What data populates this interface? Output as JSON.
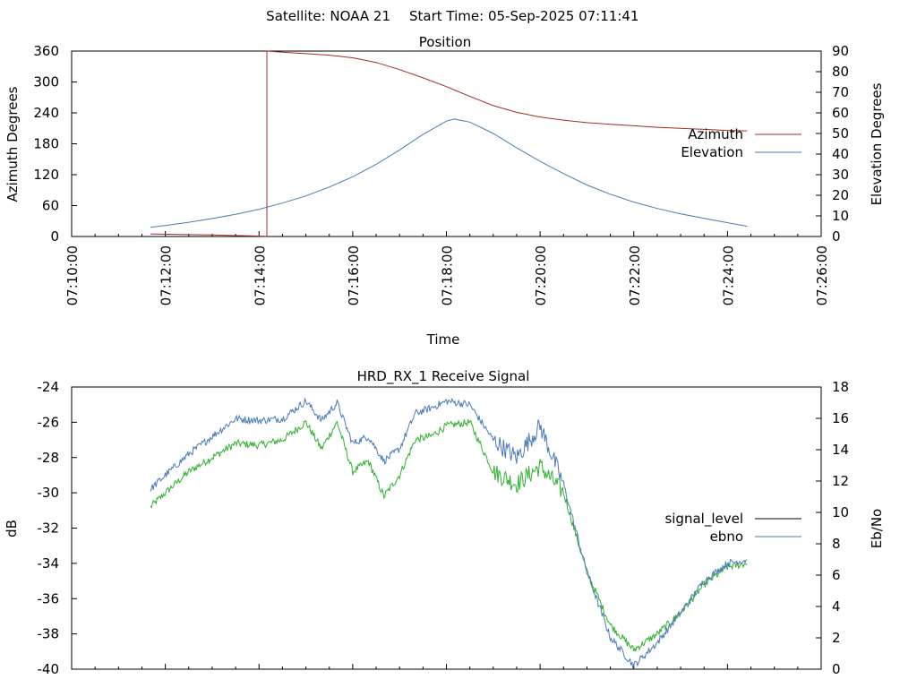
{
  "header": {
    "satellite": "Satellite: NOAA 21",
    "start_time": "Start Time: 05-Sep-2025 07:11:41"
  },
  "chart_data": [
    {
      "type": "line",
      "title": "Position",
      "xlabel": "Time",
      "ylabel": "Azimuth Degrees",
      "y2label": "Elevation Degrees",
      "x_ticks": [
        "07:10:00",
        "07:12:00",
        "07:14:00",
        "07:16:00",
        "07:18:00",
        "07:20:00",
        "07:22:00",
        "07:24:00",
        "07:26:00"
      ],
      "xlim": [
        "07:10:00",
        "07:26:00"
      ],
      "ylim": [
        0,
        360
      ],
      "y_ticks": [
        "0",
        "60",
        "120",
        "180",
        "240",
        "300",
        "360"
      ],
      "y2lim": [
        0,
        90
      ],
      "y2_ticks": [
        "0",
        "10",
        "20",
        "30",
        "40",
        "50",
        "60",
        "70",
        "80",
        "90"
      ],
      "legend_position": "right",
      "grid": false,
      "series": [
        {
          "name": "Azimuth",
          "axis": "y",
          "color": "#a52a2a",
          "points": [
            [
              "07:11:41",
              5
            ],
            [
              "07:12:20",
              4
            ],
            [
              "07:13:00",
              3
            ],
            [
              "07:13:40",
              1.5
            ],
            [
              "07:14:08",
              0.5
            ],
            [
              "07:14:10",
              0
            ],
            [
              "07:14:10",
              360
            ],
            [
              "07:14:30",
              358
            ],
            [
              "07:15:00",
              355
            ],
            [
              "07:15:30",
              352
            ],
            [
              "07:16:00",
              347
            ],
            [
              "07:16:30",
              338
            ],
            [
              "07:17:00",
              324
            ],
            [
              "07:17:30",
              308
            ],
            [
              "07:18:00",
              291
            ],
            [
              "07:18:30",
              272
            ],
            [
              "07:19:00",
              254
            ],
            [
              "07:19:30",
              241
            ],
            [
              "07:20:00",
              232
            ],
            [
              "07:20:30",
              226
            ],
            [
              "07:21:00",
              221
            ],
            [
              "07:21:30",
              218
            ],
            [
              "07:22:00",
              215
            ],
            [
              "07:22:30",
              212
            ],
            [
              "07:23:00",
              210
            ],
            [
              "07:23:30",
              208
            ],
            [
              "07:24:00",
              206
            ],
            [
              "07:24:25",
              205
            ]
          ]
        },
        {
          "name": "Elevation",
          "axis": "y2",
          "color": "#4a7ab8",
          "points": [
            [
              "07:11:41",
              4.5
            ],
            [
              "07:12:00",
              5.3
            ],
            [
              "07:12:30",
              6.9
            ],
            [
              "07:13:00",
              8.7
            ],
            [
              "07:13:30",
              10.8
            ],
            [
              "07:14:00",
              13.2
            ],
            [
              "07:14:30",
              16.2
            ],
            [
              "07:15:00",
              19.7
            ],
            [
              "07:15:30",
              24.0
            ],
            [
              "07:16:00",
              29.0
            ],
            [
              "07:16:30",
              35.0
            ],
            [
              "07:17:00",
              42.0
            ],
            [
              "07:17:30",
              49.5
            ],
            [
              "07:18:00",
              56.0
            ],
            [
              "07:18:10",
              57.0
            ],
            [
              "07:18:30",
              55.5
            ],
            [
              "07:19:00",
              50.0
            ],
            [
              "07:19:30",
              43.0
            ],
            [
              "07:20:00",
              36.5
            ],
            [
              "07:20:30",
              30.5
            ],
            [
              "07:21:00",
              25.0
            ],
            [
              "07:21:30",
              20.5
            ],
            [
              "07:22:00",
              16.7
            ],
            [
              "07:22:30",
              13.6
            ],
            [
              "07:23:00",
              11.0
            ],
            [
              "07:23:30",
              8.8
            ],
            [
              "07:24:00",
              6.7
            ],
            [
              "07:24:25",
              5.0
            ]
          ]
        }
      ]
    },
    {
      "type": "line",
      "title": "HRD_RX_1 Receive Signal",
      "ylabel": "dB",
      "y2label": "Eb/No",
      "xlim": [
        "07:10:00",
        "07:26:00"
      ],
      "ylim": [
        -40,
        -24
      ],
      "y_ticks": [
        "-24",
        "-26",
        "-28",
        "-30",
        "-32",
        "-34",
        "-36",
        "-38",
        "-40"
      ],
      "y2lim": [
        0,
        18
      ],
      "y2_ticks": [
        "0",
        "2",
        "4",
        "6",
        "8",
        "10",
        "12",
        "14",
        "16",
        "18"
      ],
      "legend_position": "right",
      "grid": false,
      "series": [
        {
          "name": "signal_level",
          "axis": "y",
          "color": "#2fb12f",
          "legend_color": "#000000",
          "points": [
            [
              "07:11:41",
              -30.8
            ],
            [
              "07:12:00",
              -30.0
            ],
            [
              "07:12:30",
              -28.8
            ],
            [
              "07:13:00",
              -28.0
            ],
            [
              "07:13:30",
              -27.2
            ],
            [
              "07:14:00",
              -27.3
            ],
            [
              "07:14:30",
              -27.0
            ],
            [
              "07:15:00",
              -26.0
            ],
            [
              "07:15:20",
              -27.5
            ],
            [
              "07:15:40",
              -26.0
            ],
            [
              "07:16:00",
              -28.8
            ],
            [
              "07:16:20",
              -28.2
            ],
            [
              "07:16:40",
              -30.2
            ],
            [
              "07:17:00",
              -29.0
            ],
            [
              "07:17:20",
              -27.0
            ],
            [
              "07:17:40",
              -26.8
            ],
            [
              "07:18:00",
              -26.2
            ],
            [
              "07:18:30",
              -26.0
            ],
            [
              "07:19:00",
              -28.8
            ],
            [
              "07:19:30",
              -29.5
            ],
            [
              "07:20:00",
              -28.5
            ],
            [
              "07:20:30",
              -30.0
            ],
            [
              "07:21:00",
              -34.5
            ],
            [
              "07:21:30",
              -37.5
            ],
            [
              "07:22:00",
              -38.9
            ],
            [
              "07:22:30",
              -38.0
            ],
            [
              "07:23:00",
              -36.8
            ],
            [
              "07:23:30",
              -35.2
            ],
            [
              "07:24:00",
              -34.2
            ],
            [
              "07:24:25",
              -34.0
            ]
          ]
        },
        {
          "name": "ebno",
          "axis": "y",
          "color": "#4a7ab8",
          "points": [
            [
              "07:11:41",
              -29.8
            ],
            [
              "07:12:00",
              -29.0
            ],
            [
              "07:12:30",
              -27.8
            ],
            [
              "07:13:00",
              -26.8
            ],
            [
              "07:13:30",
              -25.8
            ],
            [
              "07:14:00",
              -25.9
            ],
            [
              "07:14:30",
              -25.8
            ],
            [
              "07:15:00",
              -24.8
            ],
            [
              "07:15:20",
              -25.9
            ],
            [
              "07:15:40",
              -24.9
            ],
            [
              "07:16:00",
              -27.2
            ],
            [
              "07:16:20",
              -26.8
            ],
            [
              "07:16:40",
              -28.2
            ],
            [
              "07:17:00",
              -27.5
            ],
            [
              "07:17:20",
              -25.5
            ],
            [
              "07:17:40",
              -25.2
            ],
            [
              "07:18:00",
              -24.8
            ],
            [
              "07:18:30",
              -25.0
            ],
            [
              "07:19:00",
              -27.0
            ],
            [
              "07:19:30",
              -28.0
            ],
            [
              "07:20:00",
              -26.2
            ],
            [
              "07:20:30",
              -29.5
            ],
            [
              "07:21:00",
              -34.5
            ],
            [
              "07:21:30",
              -38.2
            ],
            [
              "07:22:00",
              -39.8
            ],
            [
              "07:22:30",
              -38.5
            ],
            [
              "07:23:00",
              -36.8
            ],
            [
              "07:23:30",
              -35.0
            ],
            [
              "07:24:00",
              -34.0
            ],
            [
              "07:24:25",
              -33.8
            ]
          ]
        }
      ]
    }
  ]
}
